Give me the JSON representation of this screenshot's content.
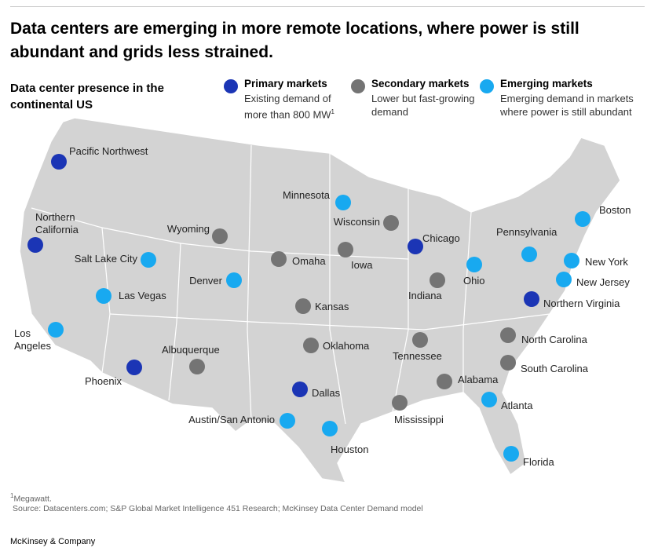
{
  "title": "Data centers are emerging in more remote locations, where power is still abundant and grids less strained.",
  "subtitle": "Data center presence in the continental US",
  "groups": [
    {
      "name": "Primary markets",
      "description": "Existing demand of more than 800 MW",
      "footnote_mark": "1",
      "color": "#1b35b5",
      "markets": [
        "Pacific Northwest",
        "Northern California",
        "Chicago",
        "Northern Virginia",
        "Dallas",
        "Phoenix"
      ]
    },
    {
      "name": "Secondary markets",
      "description": "Lower but fast-growing demand",
      "color": "#747474",
      "markets": [
        "Wyoming",
        "Omaha",
        "Iowa",
        "Wisconsin",
        "Kansas",
        "Oklahoma",
        "Albuquerque",
        "Tennessee",
        "Indiana",
        "Mississippi",
        "Alabama",
        "North Carolina",
        "South Carolina"
      ]
    },
    {
      "name": "Emerging markets",
      "description": "Emerging demand in markets where power is still abundant",
      "color": "#18a9f0",
      "markets": [
        "Minnesota",
        "Salt Lake City",
        "Las Vegas",
        "Denver",
        "Los Angeles",
        "Houston",
        "Austin/San Antonio",
        "Ohio",
        "Pennsylvania",
        "Boston",
        "New York",
        "New Jersey",
        "Atlanta",
        "Florida"
      ]
    }
  ],
  "footnote_mark": "1",
  "footnote": "Megawatt.",
  "source": "Source: Datacenters.com; S&P Global Market Intelligence 451 Research; McKinsey Data Center Demand model",
  "brand": "McKinsey & Company"
}
